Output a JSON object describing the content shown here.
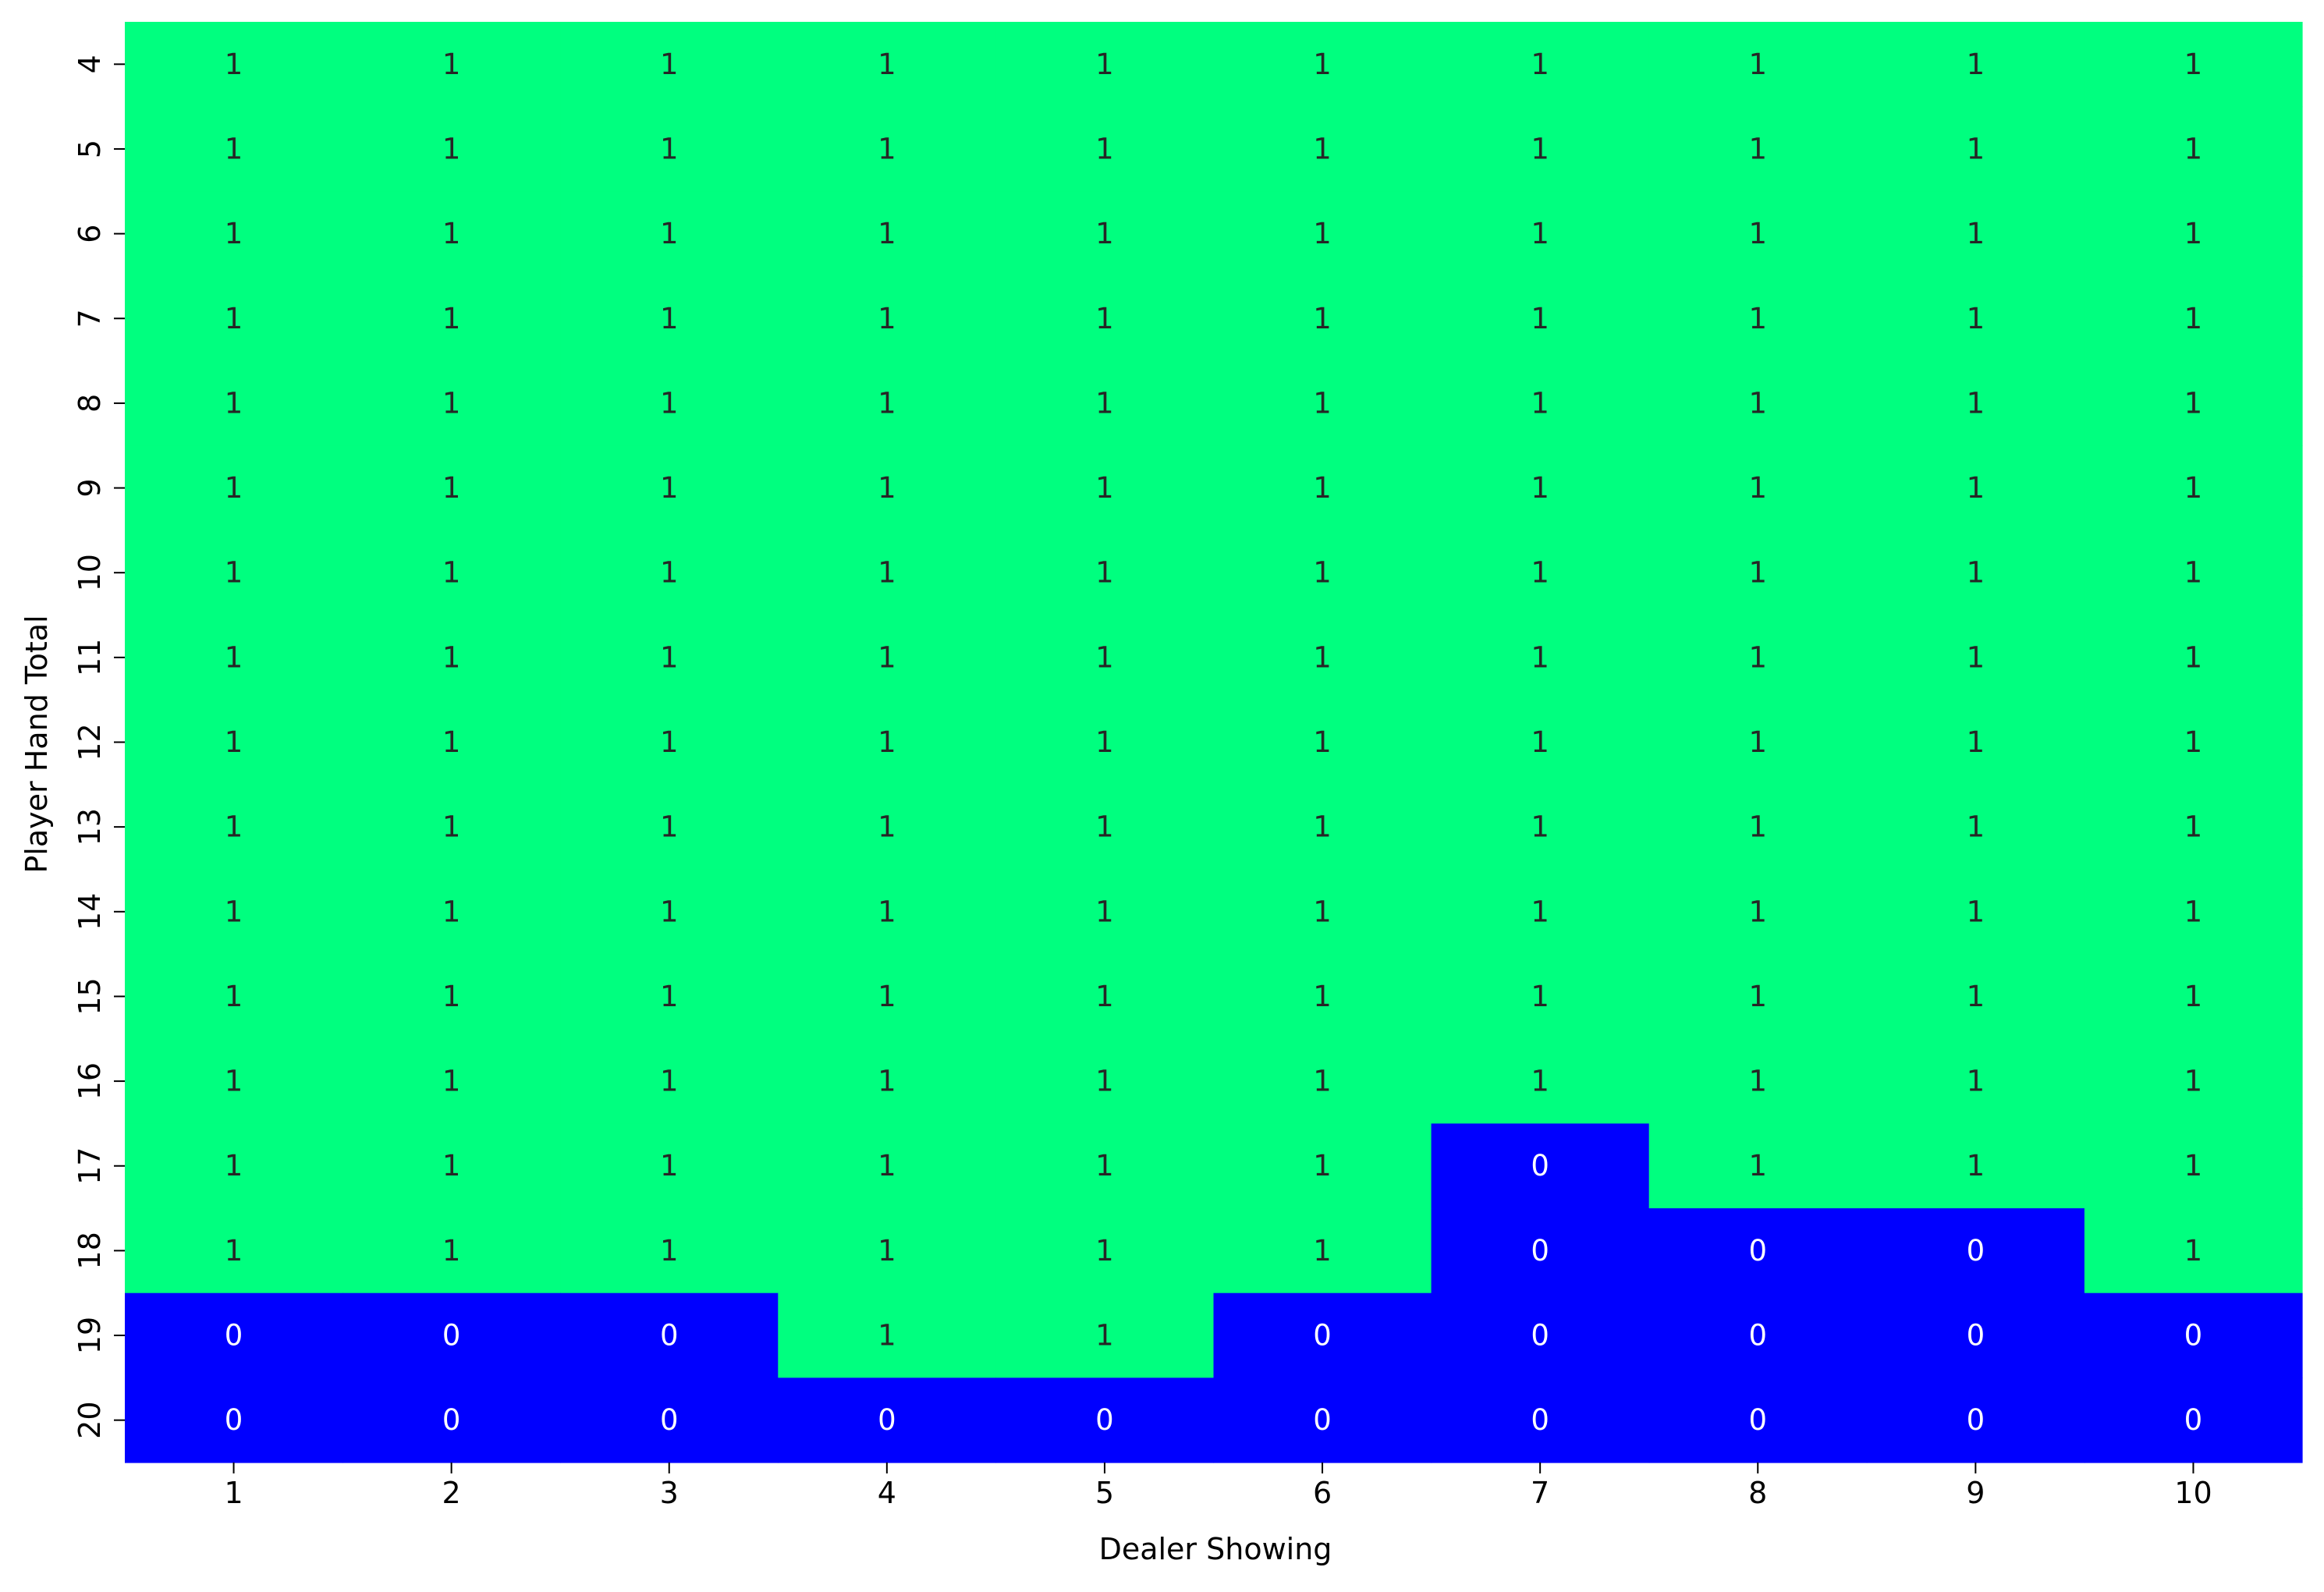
{
  "chart_data": {
    "type": "heatmap",
    "title": "",
    "xlabel": "Dealer Showing",
    "ylabel": "Player Hand Total",
    "x_categories": [
      "1",
      "2",
      "3",
      "4",
      "5",
      "6",
      "7",
      "8",
      "9",
      "10"
    ],
    "y_categories": [
      "4",
      "5",
      "6",
      "7",
      "8",
      "9",
      "10",
      "11",
      "12",
      "13",
      "14",
      "15",
      "16",
      "17",
      "18",
      "19",
      "20"
    ],
    "values": [
      [
        1,
        1,
        1,
        1,
        1,
        1,
        1,
        1,
        1,
        1
      ],
      [
        1,
        1,
        1,
        1,
        1,
        1,
        1,
        1,
        1,
        1
      ],
      [
        1,
        1,
        1,
        1,
        1,
        1,
        1,
        1,
        1,
        1
      ],
      [
        1,
        1,
        1,
        1,
        1,
        1,
        1,
        1,
        1,
        1
      ],
      [
        1,
        1,
        1,
        1,
        1,
        1,
        1,
        1,
        1,
        1
      ],
      [
        1,
        1,
        1,
        1,
        1,
        1,
        1,
        1,
        1,
        1
      ],
      [
        1,
        1,
        1,
        1,
        1,
        1,
        1,
        1,
        1,
        1
      ],
      [
        1,
        1,
        1,
        1,
        1,
        1,
        1,
        1,
        1,
        1
      ],
      [
        1,
        1,
        1,
        1,
        1,
        1,
        1,
        1,
        1,
        1
      ],
      [
        1,
        1,
        1,
        1,
        1,
        1,
        1,
        1,
        1,
        1
      ],
      [
        1,
        1,
        1,
        1,
        1,
        1,
        1,
        1,
        1,
        1
      ],
      [
        1,
        1,
        1,
        1,
        1,
        1,
        1,
        1,
        1,
        1
      ],
      [
        1,
        1,
        1,
        1,
        1,
        1,
        1,
        1,
        1,
        1
      ],
      [
        1,
        1,
        1,
        1,
        1,
        1,
        0,
        1,
        1,
        1
      ],
      [
        1,
        1,
        1,
        1,
        1,
        1,
        0,
        0,
        0,
        1
      ],
      [
        0,
        0,
        0,
        1,
        1,
        0,
        0,
        0,
        0,
        0
      ],
      [
        0,
        0,
        0,
        0,
        0,
        0,
        0,
        0,
        0,
        0
      ]
    ],
    "colors": {
      "1": "#00ff7f",
      "0": "#0000ff"
    },
    "annotation_colors": {
      "1": "#262626",
      "0": "#ffffff"
    },
    "grid": false,
    "legend": "none"
  }
}
